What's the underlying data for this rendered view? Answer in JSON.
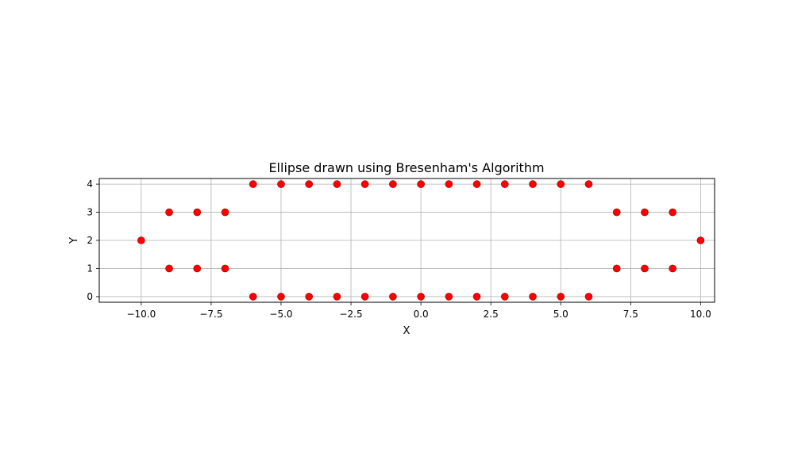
{
  "chart_data": {
    "type": "scatter",
    "title": "Ellipse drawn using Bresenham's Algorithm",
    "xlabel": "X",
    "ylabel": "Y",
    "xlim": [
      -11.5,
      10.5
    ],
    "ylim": [
      -0.2,
      4.2
    ],
    "grid": true,
    "marker_color": "#ff0000",
    "marker_edge_color": "#990000",
    "x_ticks": [
      {
        "value": -10.0,
        "label": "−10.0"
      },
      {
        "value": -7.5,
        "label": "−7.5"
      },
      {
        "value": -5.0,
        "label": "−5.0"
      },
      {
        "value": -2.5,
        "label": "−2.5"
      },
      {
        "value": 0.0,
        "label": "0.0"
      },
      {
        "value": 2.5,
        "label": "2.5"
      },
      {
        "value": 5.0,
        "label": "5.0"
      },
      {
        "value": 7.5,
        "label": "7.5"
      },
      {
        "value": 10.0,
        "label": "10.0"
      }
    ],
    "y_ticks": [
      {
        "value": 0,
        "label": "0"
      },
      {
        "value": 1,
        "label": "1"
      },
      {
        "value": 2,
        "label": "2"
      },
      {
        "value": 3,
        "label": "3"
      },
      {
        "value": 4,
        "label": "4"
      }
    ],
    "points": [
      [
        -10,
        2
      ],
      [
        10,
        2
      ],
      [
        -9,
        3
      ],
      [
        -8,
        3
      ],
      [
        -7,
        3
      ],
      [
        7,
        3
      ],
      [
        8,
        3
      ],
      [
        9,
        3
      ],
      [
        -9,
        1
      ],
      [
        -8,
        1
      ],
      [
        -7,
        1
      ],
      [
        7,
        1
      ],
      [
        8,
        1
      ],
      [
        9,
        1
      ],
      [
        -6,
        4
      ],
      [
        -5,
        4
      ],
      [
        -4,
        4
      ],
      [
        -3,
        4
      ],
      [
        -2,
        4
      ],
      [
        -1,
        4
      ],
      [
        0,
        4
      ],
      [
        1,
        4
      ],
      [
        2,
        4
      ],
      [
        3,
        4
      ],
      [
        4,
        4
      ],
      [
        5,
        4
      ],
      [
        6,
        4
      ],
      [
        -6,
        0
      ],
      [
        -5,
        0
      ],
      [
        -4,
        0
      ],
      [
        -3,
        0
      ],
      [
        -2,
        0
      ],
      [
        -1,
        0
      ],
      [
        0,
        0
      ],
      [
        1,
        0
      ],
      [
        2,
        0
      ],
      [
        3,
        0
      ],
      [
        4,
        0
      ],
      [
        5,
        0
      ],
      [
        6,
        0
      ]
    ]
  }
}
